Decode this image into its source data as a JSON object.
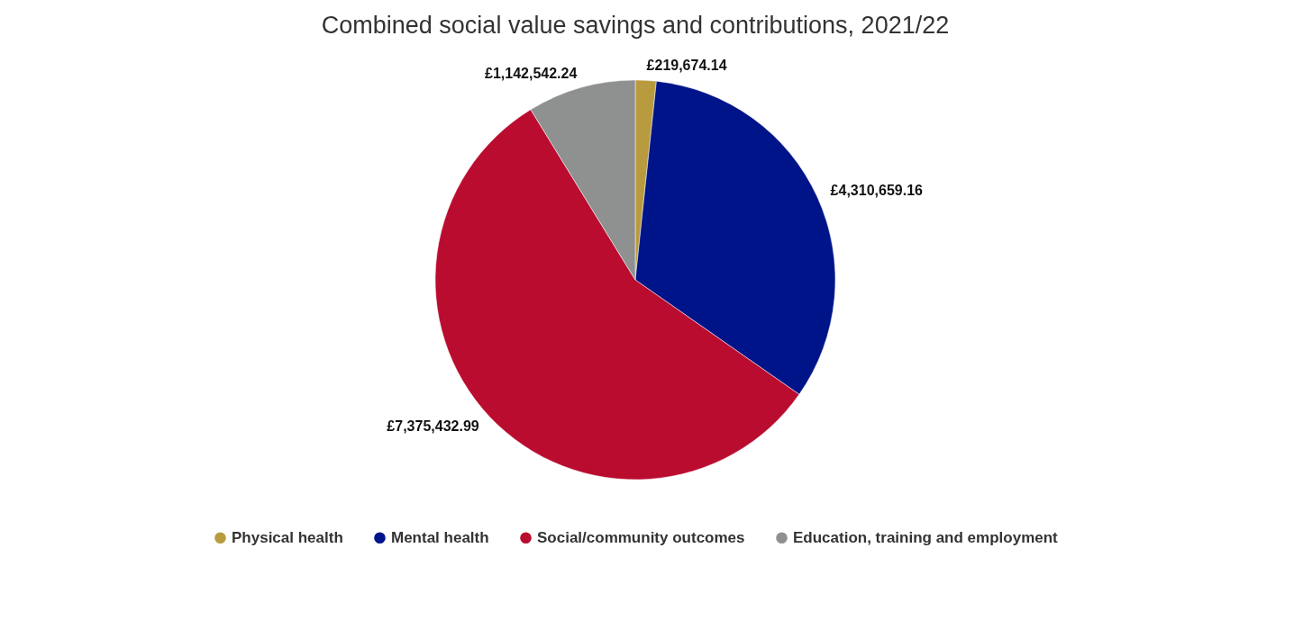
{
  "chart_data": {
    "type": "pie",
    "title": "Combined social value savings and contributions, 2021/22",
    "categories": [
      "Physical health",
      "Mental health",
      "Social/community outcomes",
      "Education, training and employment"
    ],
    "values": [
      219674.14,
      4310659.16,
      7375432.99,
      1142542.24
    ],
    "colors": [
      "#b89b3f",
      "#001489",
      "#ba0c2f",
      "#8f9090"
    ],
    "value_labels": [
      "£219,674.14",
      "£4,310,659.16",
      "£7,375,432.99",
      "£1,142,542.24"
    ],
    "legend": "bottom"
  }
}
